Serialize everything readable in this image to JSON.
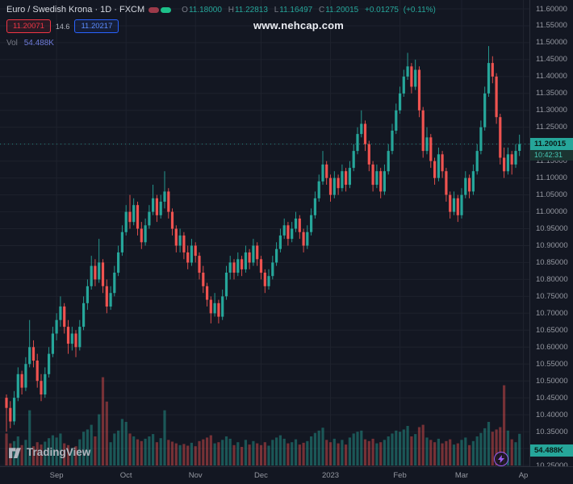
{
  "header": {
    "title": "Euro / Swedish Krona · 1D · FXCM",
    "ohlc": {
      "open_label": "O",
      "open": "11.18000",
      "high_label": "H",
      "high": "11.22813",
      "low_label": "L",
      "low": "11.16497",
      "close_label": "C",
      "close": "11.20015",
      "change": "+0.01275",
      "change_pct": "(+0.11%)"
    },
    "sell": "11.20071",
    "spread": "14.6",
    "buy": "11.20217",
    "volume_label": "Vol",
    "volume_value": "54.488K"
  },
  "watermark": "www.nehcap.com",
  "price_scale": {
    "last_price_label": "11.20015",
    "countdown": "10:42:31",
    "volume_badge": "54.488K"
  },
  "footer": {
    "logo_text": "TradingView"
  },
  "colors": {
    "background": "#131722",
    "grid": "#1e222d",
    "up": "#26a69a",
    "down": "#ef5350",
    "up_volume": "rgba(38,166,154,0.45)",
    "down_volume": "rgba(239,83,80,0.45)",
    "sell_red": "#f23645",
    "buy_blue": "#2962ff",
    "volume_text": "#6e7bd9",
    "axis_text": "#9598a1",
    "badge_teal": "#26a69a"
  },
  "chart_data": {
    "type": "candlestick",
    "title": "Euro / Swedish Krona · 1D · FXCM",
    "timeframe": "1D",
    "exchange": "FXCM",
    "ohlc_display": {
      "open": 11.18,
      "high": 11.22813,
      "low": 11.16497,
      "close": 11.20015,
      "change": 0.01275,
      "change_pct": 0.11
    },
    "last_price": 11.20015,
    "last_volume_k": 54.488,
    "ylim": [
      10.25,
      11.6
    ],
    "price_step": 0.05,
    "grid": true,
    "price_ticks": [
      "11.60000",
      "11.55000",
      "11.50000",
      "11.45000",
      "11.40000",
      "11.35000",
      "11.30000",
      "11.25000",
      "11.20000",
      "11.15000",
      "11.10000",
      "11.05000",
      "11.00000",
      "10.95000",
      "10.90000",
      "10.85000",
      "10.80000",
      "10.75000",
      "10.70000",
      "10.65000",
      "10.60000",
      "10.55000",
      "10.50000",
      "10.45000",
      "10.40000",
      "10.35000",
      "10.30000",
      "10.25000"
    ],
    "time_ticks": [
      {
        "label": "Sep",
        "index": 13
      },
      {
        "label": "Oct",
        "index": 31
      },
      {
        "label": "Nov",
        "index": 49
      },
      {
        "label": "Dec",
        "index": 66
      },
      {
        "label": "2023",
        "index": 84
      },
      {
        "label": "Feb",
        "index": 102
      },
      {
        "label": "Mar",
        "index": 118
      },
      {
        "label": "Ap",
        "index": 134
      }
    ],
    "volume_unit": "K",
    "candles_format": [
      "open",
      "high",
      "low",
      "close",
      "volume_k"
    ],
    "candles": [
      [
        10.45,
        10.46,
        10.35,
        10.42,
        55
      ],
      [
        10.42,
        10.44,
        10.36,
        10.38,
        38
      ],
      [
        10.38,
        10.47,
        10.37,
        10.45,
        42
      ],
      [
        10.45,
        10.54,
        10.44,
        10.52,
        50
      ],
      [
        10.52,
        10.53,
        10.46,
        10.48,
        35
      ],
      [
        10.48,
        10.57,
        10.47,
        10.55,
        44
      ],
      [
        10.55,
        10.68,
        10.54,
        10.6,
        95
      ],
      [
        10.6,
        10.62,
        10.54,
        10.56,
        33
      ],
      [
        10.56,
        10.58,
        10.48,
        10.5,
        40
      ],
      [
        10.5,
        10.52,
        10.44,
        10.46,
        36
      ],
      [
        10.46,
        10.54,
        10.45,
        10.52,
        41
      ],
      [
        10.52,
        10.6,
        10.51,
        10.58,
        47
      ],
      [
        10.58,
        10.66,
        10.57,
        10.64,
        52
      ],
      [
        10.64,
        10.7,
        10.62,
        10.68,
        48
      ],
      [
        10.68,
        10.75,
        10.66,
        10.72,
        55
      ],
      [
        10.72,
        10.73,
        10.64,
        10.66,
        38
      ],
      [
        10.66,
        10.68,
        10.58,
        10.61,
        35
      ],
      [
        10.61,
        10.66,
        10.59,
        10.64,
        30
      ],
      [
        10.64,
        10.65,
        10.57,
        10.6,
        33
      ],
      [
        10.6,
        10.68,
        10.59,
        10.66,
        45
      ],
      [
        10.66,
        10.75,
        10.65,
        10.73,
        58
      ],
      [
        10.73,
        10.8,
        10.71,
        10.78,
        62
      ],
      [
        10.78,
        10.87,
        10.77,
        10.84,
        70
      ],
      [
        10.84,
        10.86,
        10.78,
        10.8,
        50
      ],
      [
        10.8,
        10.92,
        10.79,
        10.85,
        88
      ],
      [
        10.85,
        10.86,
        10.76,
        10.78,
        152
      ],
      [
        10.78,
        10.8,
        10.7,
        10.72,
        110
      ],
      [
        10.72,
        10.78,
        10.71,
        10.76,
        40
      ],
      [
        10.76,
        10.84,
        10.75,
        10.82,
        55
      ],
      [
        10.82,
        10.9,
        10.81,
        10.88,
        60
      ],
      [
        10.88,
        10.96,
        10.87,
        10.94,
        80
      ],
      [
        10.94,
        11.02,
        10.93,
        11.0,
        75
      ],
      [
        11.0,
        11.05,
        10.95,
        10.97,
        55
      ],
      [
        10.97,
        11.04,
        10.96,
        11.02,
        50
      ],
      [
        11.02,
        11.03,
        10.93,
        10.95,
        45
      ],
      [
        10.95,
        10.97,
        10.89,
        10.91,
        42
      ],
      [
        10.91,
        10.98,
        10.9,
        10.96,
        46
      ],
      [
        10.96,
        11.02,
        10.95,
        11.0,
        50
      ],
      [
        11.0,
        11.08,
        10.99,
        11.04,
        54
      ],
      [
        11.04,
        11.05,
        10.97,
        10.99,
        40
      ],
      [
        10.99,
        11.05,
        10.98,
        11.03,
        47
      ],
      [
        11.03,
        11.12,
        11.01,
        11.06,
        95
      ],
      [
        11.06,
        11.07,
        10.98,
        11.0,
        44
      ],
      [
        11.0,
        11.01,
        10.93,
        10.95,
        41
      ],
      [
        10.95,
        10.96,
        10.88,
        10.9,
        38
      ],
      [
        10.9,
        10.95,
        10.88,
        10.93,
        35
      ],
      [
        10.93,
        10.94,
        10.86,
        10.88,
        37
      ],
      [
        10.88,
        10.9,
        10.83,
        10.85,
        34
      ],
      [
        10.85,
        10.92,
        10.84,
        10.9,
        39
      ],
      [
        10.9,
        10.91,
        10.85,
        10.87,
        33
      ],
      [
        10.87,
        10.88,
        10.8,
        10.82,
        42
      ],
      [
        10.82,
        10.84,
        10.76,
        10.78,
        45
      ],
      [
        10.78,
        10.79,
        10.72,
        10.74,
        48
      ],
      [
        10.74,
        10.75,
        10.67,
        10.7,
        52
      ],
      [
        10.7,
        10.76,
        10.69,
        10.73,
        38
      ],
      [
        10.73,
        10.74,
        10.67,
        10.69,
        40
      ],
      [
        10.69,
        10.77,
        10.68,
        10.75,
        44
      ],
      [
        10.75,
        10.84,
        10.74,
        10.82,
        50
      ],
      [
        10.82,
        10.87,
        10.8,
        10.85,
        46
      ],
      [
        10.85,
        10.86,
        10.8,
        10.82,
        35
      ],
      [
        10.82,
        10.88,
        10.81,
        10.86,
        40
      ],
      [
        10.86,
        10.87,
        10.81,
        10.83,
        32
      ],
      [
        10.83,
        10.9,
        10.82,
        10.88,
        44
      ],
      [
        10.88,
        10.89,
        10.83,
        10.85,
        36
      ],
      [
        10.85,
        10.92,
        10.84,
        10.9,
        42
      ],
      [
        10.9,
        10.91,
        10.84,
        10.86,
        38
      ],
      [
        10.86,
        10.87,
        10.8,
        10.82,
        35
      ],
      [
        10.82,
        10.83,
        10.76,
        10.78,
        40
      ],
      [
        10.78,
        10.83,
        10.77,
        10.81,
        34
      ],
      [
        10.81,
        10.87,
        10.8,
        10.85,
        44
      ],
      [
        10.85,
        10.91,
        10.84,
        10.89,
        48
      ],
      [
        10.89,
        10.95,
        10.88,
        10.93,
        52
      ],
      [
        10.93,
        10.98,
        10.92,
        10.96,
        46
      ],
      [
        10.96,
        10.97,
        10.9,
        10.92,
        38
      ],
      [
        10.92,
        10.97,
        10.91,
        10.95,
        40
      ],
      [
        10.95,
        11.0,
        10.94,
        10.98,
        45
      ],
      [
        10.98,
        10.99,
        10.92,
        10.94,
        36
      ],
      [
        10.94,
        10.95,
        10.88,
        10.9,
        39
      ],
      [
        10.9,
        10.96,
        10.89,
        10.94,
        42
      ],
      [
        10.94,
        11.01,
        10.93,
        10.99,
        50
      ],
      [
        10.99,
        11.06,
        10.98,
        11.04,
        56
      ],
      [
        11.04,
        11.11,
        11.03,
        11.09,
        60
      ],
      [
        11.09,
        11.18,
        11.08,
        11.14,
        65
      ],
      [
        11.14,
        11.15,
        11.08,
        11.1,
        44
      ],
      [
        11.1,
        11.11,
        11.03,
        11.05,
        40
      ],
      [
        11.05,
        11.12,
        11.04,
        11.1,
        46
      ],
      [
        11.1,
        11.11,
        11.05,
        11.07,
        38
      ],
      [
        11.07,
        11.14,
        11.06,
        11.12,
        44
      ],
      [
        11.12,
        11.13,
        11.06,
        11.08,
        36
      ],
      [
        11.08,
        11.15,
        11.07,
        11.13,
        48
      ],
      [
        11.13,
        11.2,
        11.12,
        11.18,
        55
      ],
      [
        11.18,
        11.25,
        11.17,
        11.23,
        58
      ],
      [
        11.23,
        11.3,
        11.22,
        11.26,
        60
      ],
      [
        11.26,
        11.27,
        11.18,
        11.2,
        45
      ],
      [
        11.2,
        11.21,
        11.12,
        11.14,
        42
      ],
      [
        11.14,
        11.15,
        11.06,
        11.08,
        46
      ],
      [
        11.08,
        11.14,
        11.07,
        11.12,
        38
      ],
      [
        11.12,
        11.13,
        11.04,
        11.06,
        40
      ],
      [
        11.06,
        11.14,
        11.05,
        11.12,
        44
      ],
      [
        11.12,
        11.2,
        11.11,
        11.18,
        50
      ],
      [
        11.18,
        11.26,
        11.17,
        11.24,
        55
      ],
      [
        11.24,
        11.32,
        11.23,
        11.3,
        60
      ],
      [
        11.3,
        11.37,
        11.29,
        11.35,
        58
      ],
      [
        11.35,
        11.42,
        11.34,
        11.4,
        62
      ],
      [
        11.4,
        11.47,
        11.39,
        11.43,
        68
      ],
      [
        11.43,
        11.44,
        11.35,
        11.37,
        50
      ],
      [
        11.37,
        11.45,
        11.36,
        11.42,
        54
      ],
      [
        11.42,
        11.43,
        11.28,
        11.3,
        66
      ],
      [
        11.3,
        11.31,
        11.16,
        11.18,
        70
      ],
      [
        11.18,
        11.25,
        11.17,
        11.22,
        48
      ],
      [
        11.22,
        11.23,
        11.13,
        11.15,
        44
      ],
      [
        11.15,
        11.16,
        11.08,
        11.1,
        40
      ],
      [
        11.1,
        11.19,
        11.09,
        11.17,
        46
      ],
      [
        11.17,
        11.18,
        11.1,
        11.12,
        38
      ],
      [
        11.12,
        11.13,
        11.03,
        11.05,
        42
      ],
      [
        11.05,
        11.06,
        10.98,
        11.0,
        45
      ],
      [
        11.0,
        11.06,
        10.99,
        11.04,
        36
      ],
      [
        11.04,
        11.05,
        10.97,
        10.99,
        38
      ],
      [
        10.99,
        11.07,
        10.98,
        11.05,
        44
      ],
      [
        11.05,
        11.12,
        11.04,
        11.1,
        48
      ],
      [
        11.1,
        11.11,
        11.04,
        11.06,
        35
      ],
      [
        11.06,
        11.14,
        11.05,
        11.12,
        42
      ],
      [
        11.12,
        11.2,
        11.11,
        11.18,
        50
      ],
      [
        11.18,
        11.27,
        11.17,
        11.25,
        56
      ],
      [
        11.25,
        11.37,
        11.24,
        11.35,
        64
      ],
      [
        11.35,
        11.49,
        11.34,
        11.44,
        75
      ],
      [
        11.44,
        11.46,
        11.38,
        11.4,
        58
      ],
      [
        11.4,
        11.41,
        11.26,
        11.28,
        62
      ],
      [
        11.28,
        11.29,
        11.14,
        11.16,
        66
      ],
      [
        11.16,
        11.19,
        11.1,
        11.12,
        138
      ],
      [
        11.12,
        11.19,
        11.11,
        11.17,
        60
      ],
      [
        11.17,
        11.18,
        11.11,
        11.14,
        45
      ],
      [
        11.14,
        11.2,
        11.13,
        11.18,
        40
      ],
      [
        11.18,
        11.22813,
        11.16497,
        11.20015,
        54.488
      ]
    ]
  }
}
